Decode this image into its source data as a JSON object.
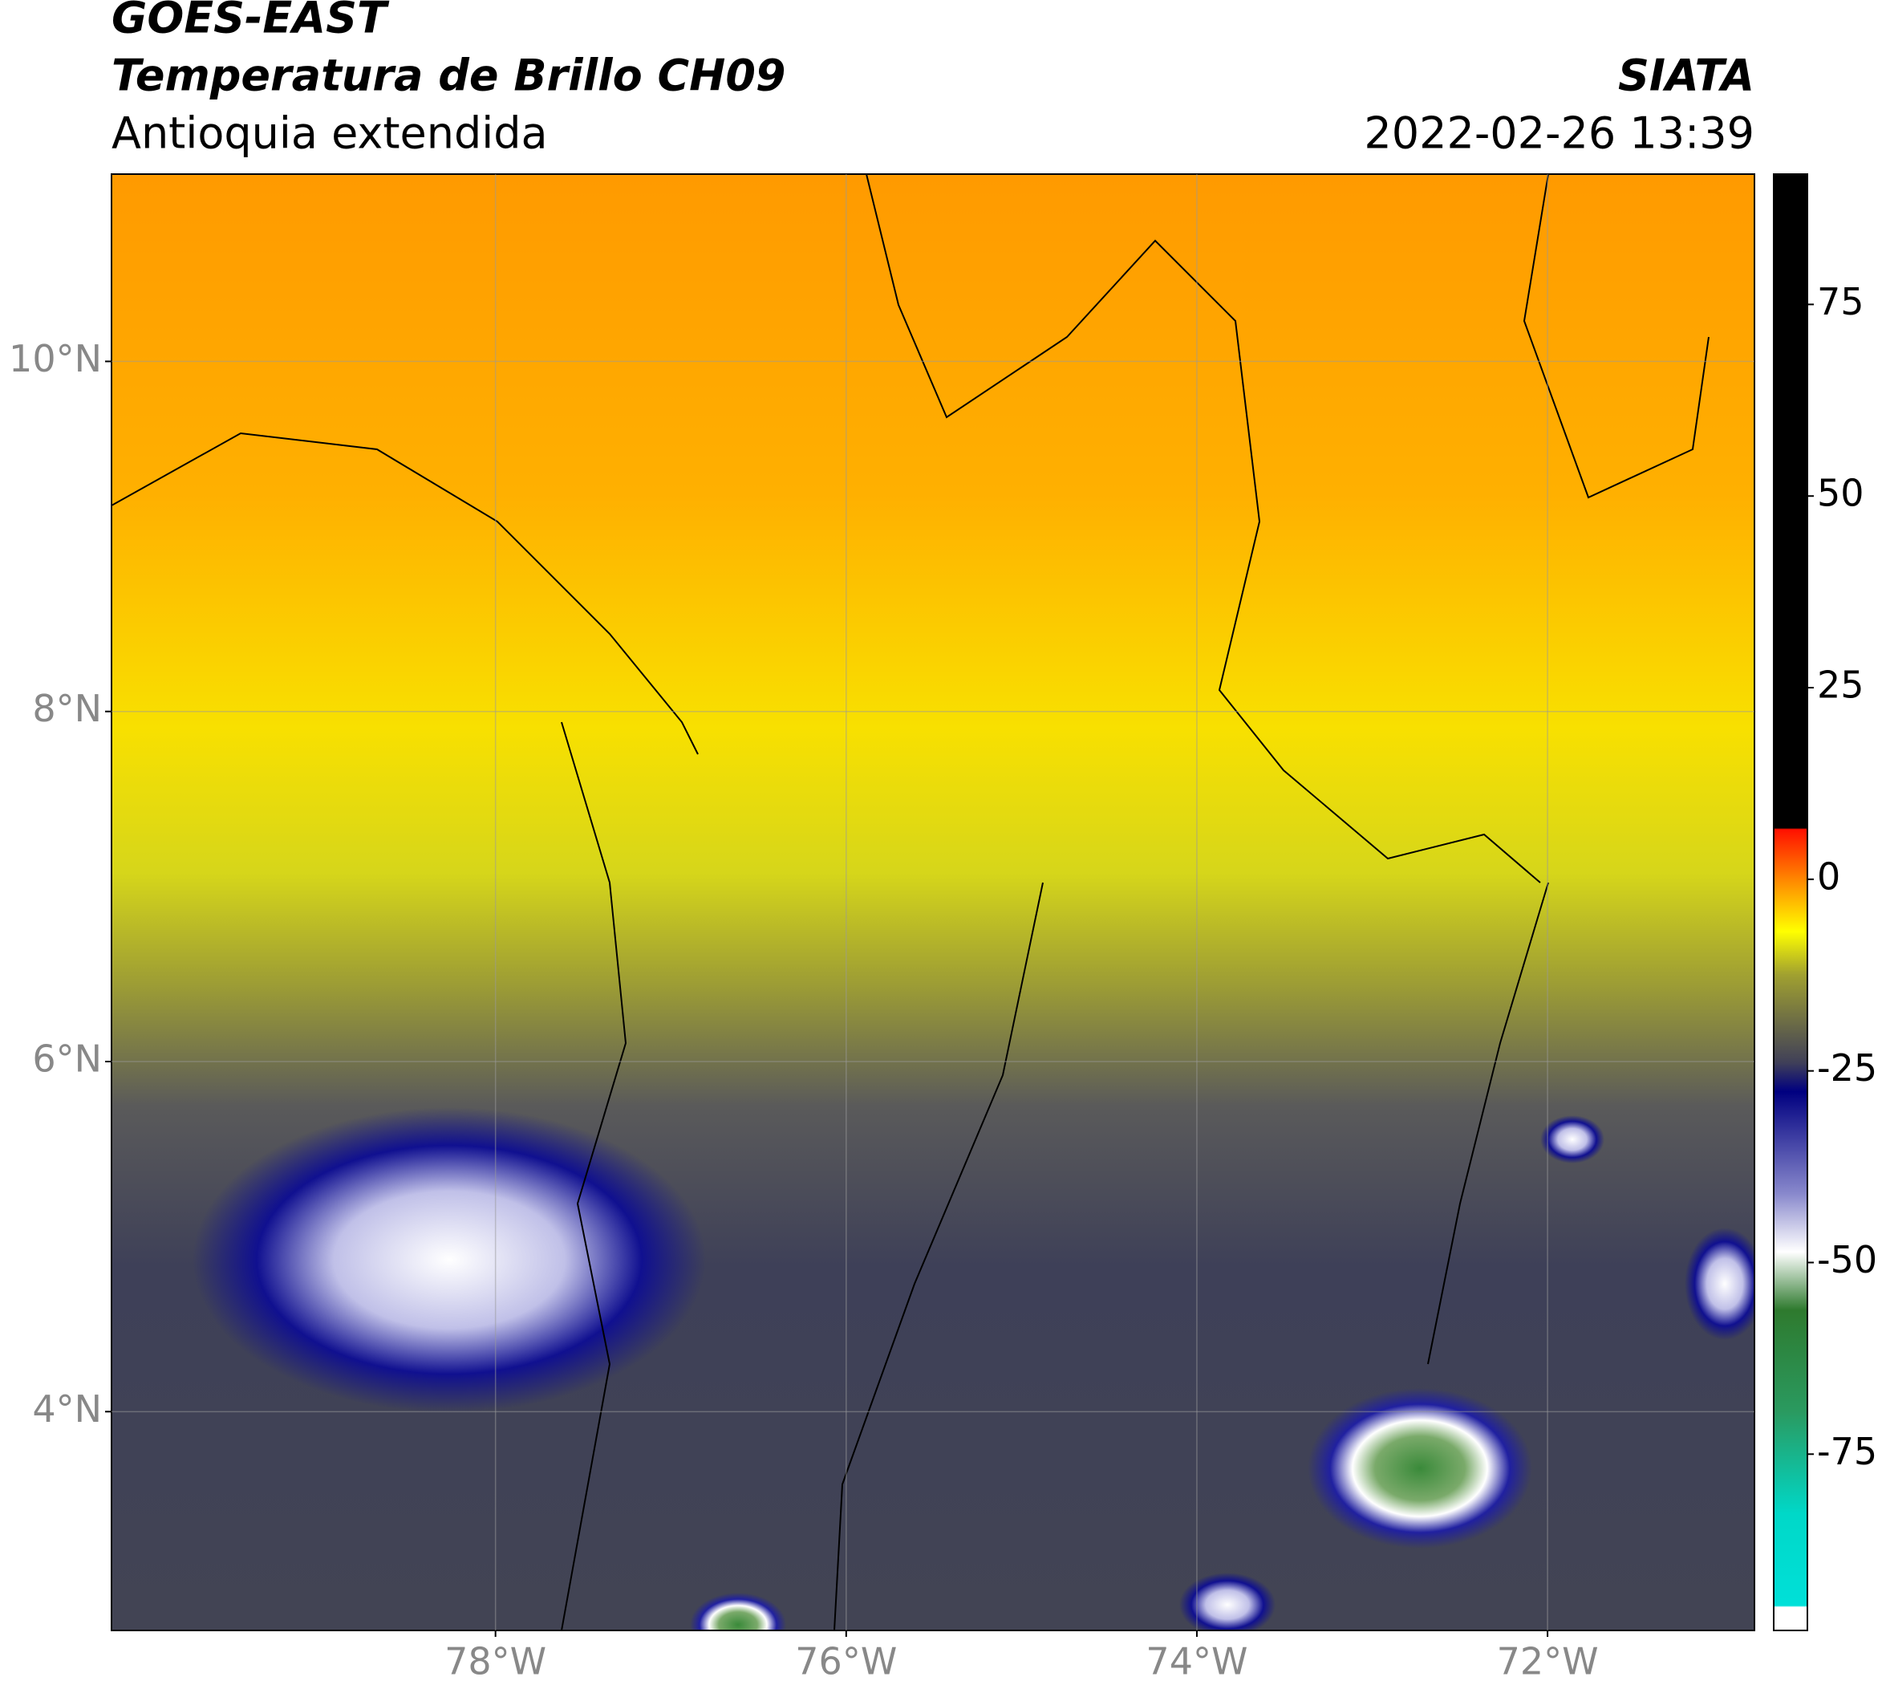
{
  "chart_data": {
    "type": "map",
    "title": "GOES-EAST",
    "subtitle": "Temperatura de Brillo CH09",
    "region": "Antioquia extendida",
    "source": "SIATA",
    "datetime": "2022-02-26 13:39",
    "xlim": [
      -80.19,
      -70.82
    ],
    "ylim": [
      2.75,
      11.07
    ],
    "xticks": [
      {
        "value": -78,
        "label": "78°W"
      },
      {
        "value": -76,
        "label": "76°W"
      },
      {
        "value": -74,
        "label": "74°W"
      },
      {
        "value": -72,
        "label": "72°W"
      }
    ],
    "yticks": [
      {
        "value": 4,
        "label": "4°N"
      },
      {
        "value": 6,
        "label": "6°N"
      },
      {
        "value": 8,
        "label": "8°N"
      },
      {
        "value": 10,
        "label": "10°N"
      }
    ],
    "grid": true,
    "colorbar": {
      "lim": [
        -98,
        92
      ],
      "ticks": [
        -75,
        -50,
        -25,
        0,
        25,
        50,
        75
      ]
    }
  }
}
